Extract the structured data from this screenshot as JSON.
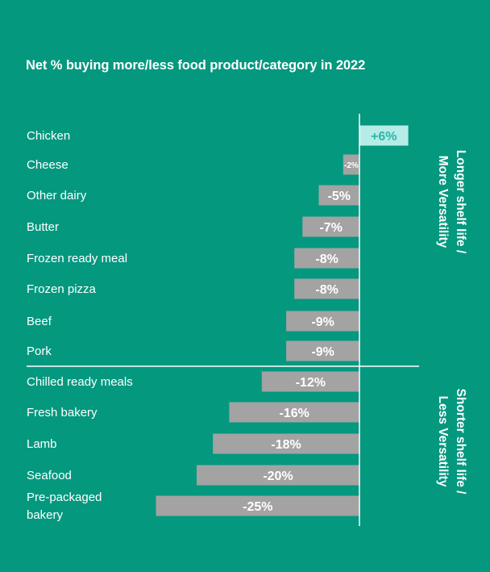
{
  "chart_data": {
    "type": "bar",
    "orientation": "horizontal",
    "title": "Net % buying more/less food product/category in 2022",
    "categories": [
      "Chicken",
      "Cheese",
      "Other dairy",
      "Butter",
      "Frozen ready meal",
      "Frozen pizza",
      "Beef",
      "Pork",
      "Chilled ready meals",
      "Fresh bakery",
      "Lamb",
      "Seafood",
      "Pre-packaged bakery"
    ],
    "category_lines": [
      [
        "Chicken"
      ],
      [
        "Cheese"
      ],
      [
        "Other dairy"
      ],
      [
        "Butter"
      ],
      [
        "Frozen ready meal"
      ],
      [
        "Frozen pizza"
      ],
      [
        "Beef"
      ],
      [
        "Pork"
      ],
      [
        "Chilled ready meals"
      ],
      [
        "Fresh bakery"
      ],
      [
        "Lamb"
      ],
      [
        "Seafood"
      ],
      [
        "Pre-packaged",
        "bakery"
      ]
    ],
    "values": [
      6,
      -2,
      -5,
      -7,
      -8,
      -8,
      -9,
      -9,
      -12,
      -16,
      -18,
      -20,
      -25
    ],
    "value_labels": [
      "+6%",
      "-2%",
      "-5%",
      "-7%",
      "-8%",
      "-8%",
      "-9%",
      "-9%",
      "-12%",
      "-16%",
      "-18%",
      "-20%",
      "-25%"
    ],
    "xlim": [
      -25,
      6
    ],
    "group_labels": [
      {
        "lines": [
          "Longer shelf life /",
          "More Versatility"
        ]
      },
      {
        "lines": [
          "Shorter shelf life /",
          "Less Versatility"
        ]
      }
    ],
    "colors": {
      "background": "#04987f",
      "positive_bar": "#b6ece7",
      "positive_text": "#2ab7a8",
      "negative_bar": "#a3a3a3",
      "negative_text": "#ffffff",
      "axis": "#ffffff"
    }
  }
}
